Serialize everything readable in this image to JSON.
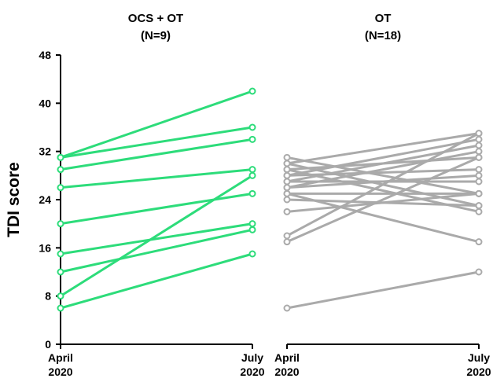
{
  "chart_data": [
    {
      "type": "line",
      "title": "OCS + OT",
      "subtitle": "(N=9)",
      "ylabel": "TDI score",
      "ylim": [
        0,
        48
      ],
      "yticks": [
        "0",
        "8",
        "16",
        "24",
        "32",
        "40",
        "48"
      ],
      "categories": [
        "April\n2020",
        "July\n2020"
      ],
      "color": "#2ddc7a",
      "series": [
        {
          "values": [
            31,
            42
          ]
        },
        {
          "values": [
            31,
            36
          ]
        },
        {
          "values": [
            29,
            34
          ]
        },
        {
          "values": [
            26,
            29
          ]
        },
        {
          "values": [
            20,
            25
          ]
        },
        {
          "values": [
            15,
            20
          ]
        },
        {
          "values": [
            12,
            19
          ]
        },
        {
          "values": [
            8,
            28
          ]
        },
        {
          "values": [
            6,
            15
          ]
        }
      ]
    },
    {
      "type": "line",
      "title": "OT",
      "subtitle": "(N=18)",
      "ylim": [
        0,
        48
      ],
      "categories": [
        "April\n2020",
        "July\n2020"
      ],
      "color": "#aaaaaa",
      "series": [
        {
          "values": [
            31,
            25
          ]
        },
        {
          "values": [
            30,
            23
          ]
        },
        {
          "values": [
            30,
            35
          ]
        },
        {
          "values": [
            29,
            31
          ]
        },
        {
          "values": [
            29,
            22
          ]
        },
        {
          "values": [
            28,
            34
          ]
        },
        {
          "values": [
            28,
            29
          ]
        },
        {
          "values": [
            27,
            33
          ]
        },
        {
          "values": [
            27,
            27
          ]
        },
        {
          "values": [
            26,
            32
          ]
        },
        {
          "values": [
            26,
            28
          ]
        },
        {
          "values": [
            25,
            25
          ]
        },
        {
          "values": [
            25,
            17
          ]
        },
        {
          "values": [
            24,
            23
          ]
        },
        {
          "values": [
            22,
            25
          ]
        },
        {
          "values": [
            18,
            35
          ]
        },
        {
          "values": [
            17,
            31
          ]
        },
        {
          "values": [
            6,
            12
          ]
        }
      ]
    }
  ]
}
